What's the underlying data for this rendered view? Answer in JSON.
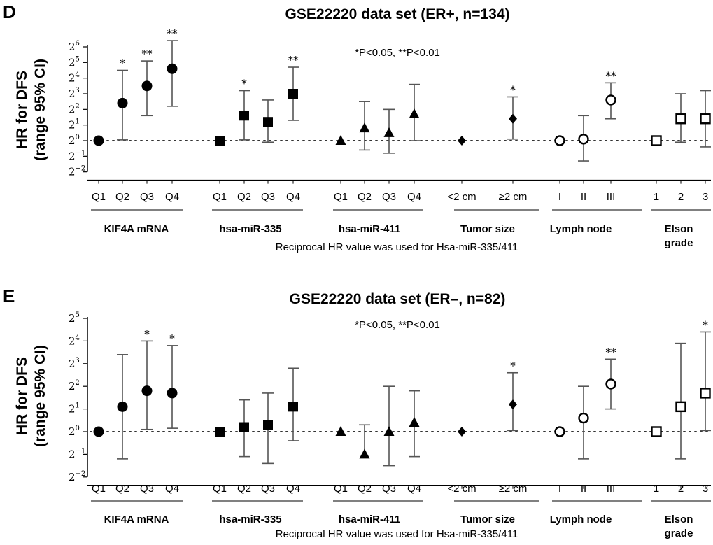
{
  "chart_data": [
    {
      "panel": "D",
      "type": "scatter",
      "title": "GSE22220 data set (ER+, n=134)",
      "ylabel_line1": "HR for DFS",
      "ylabel_line2": "(range 95% CI)",
      "yscale": "log2",
      "ylim": [
        -2,
        6
      ],
      "yticks": [
        -2,
        -1,
        0,
        1,
        2,
        3,
        4,
        5,
        6
      ],
      "significance_note": "*P<0.05, **P<0.01",
      "footnote": "Reciprocal HR value was used for Hsa-miR-335/411",
      "groups": [
        {
          "name": "KIF4A mRNA",
          "marker": "filled-circle",
          "points": [
            {
              "label": "Q1",
              "y": 0,
              "lo": null,
              "hi": null,
              "sig": ""
            },
            {
              "label": "Q2",
              "y": 2.4,
              "lo": 0.05,
              "hi": 4.5,
              "sig": "*"
            },
            {
              "label": "Q3",
              "y": 3.5,
              "lo": 1.6,
              "hi": 5.1,
              "sig": "**"
            },
            {
              "label": "Q4",
              "y": 4.6,
              "lo": 2.2,
              "hi": 6.4,
              "sig": "**"
            }
          ]
        },
        {
          "name": "hsa-miR-335",
          "marker": "filled-square",
          "points": [
            {
              "label": "Q1",
              "y": 0,
              "lo": null,
              "hi": null,
              "sig": ""
            },
            {
              "label": "Q2",
              "y": 1.6,
              "lo": 0.05,
              "hi": 3.2,
              "sig": "*"
            },
            {
              "label": "Q3",
              "y": 1.2,
              "lo": -0.1,
              "hi": 2.6,
              "sig": ""
            },
            {
              "label": "Q4",
              "y": 3.0,
              "lo": 1.3,
              "hi": 4.7,
              "sig": "**"
            }
          ]
        },
        {
          "name": "hsa-miR-411",
          "marker": "filled-triangle",
          "points": [
            {
              "label": "Q1",
              "y": 0,
              "lo": null,
              "hi": null,
              "sig": ""
            },
            {
              "label": "Q2",
              "y": 0.8,
              "lo": -0.6,
              "hi": 2.5,
              "sig": ""
            },
            {
              "label": "Q3",
              "y": 0.5,
              "lo": -0.8,
              "hi": 2.0,
              "sig": ""
            },
            {
              "label": "Q4",
              "y": 1.7,
              "lo": 0.0,
              "hi": 3.6,
              "sig": ""
            }
          ]
        },
        {
          "name": "Tumor size",
          "marker": "filled-diamond",
          "points": [
            {
              "label": "<2 cm",
              "y": 0,
              "lo": null,
              "hi": null,
              "sig": ""
            },
            {
              "label": "≥2 cm",
              "y": 1.4,
              "lo": 0.1,
              "hi": 2.8,
              "sig": "*"
            }
          ]
        },
        {
          "name": "Lymph node",
          "marker": "open-circle",
          "points": [
            {
              "label": "I",
              "y": 0,
              "lo": null,
              "hi": null,
              "sig": ""
            },
            {
              "label": "II",
              "y": 0.1,
              "lo": -1.3,
              "hi": 1.6,
              "sig": ""
            },
            {
              "label": "III",
              "y": 2.6,
              "lo": 1.4,
              "hi": 3.7,
              "sig": "**"
            }
          ]
        },
        {
          "name": "Elson grade",
          "marker": "open-square",
          "points": [
            {
              "label": "1",
              "y": 0,
              "lo": null,
              "hi": null,
              "sig": ""
            },
            {
              "label": "2",
              "y": 1.4,
              "lo": -0.1,
              "hi": 3.0,
              "sig": ""
            },
            {
              "label": "3",
              "y": 1.4,
              "lo": -0.4,
              "hi": 3.2,
              "sig": ""
            }
          ]
        }
      ]
    },
    {
      "panel": "E",
      "type": "scatter",
      "title": "GSE22220 data set (ER–, n=82)",
      "ylabel_line1": "HR for DFS",
      "ylabel_line2": "(range 95% CI)",
      "yscale": "log2",
      "ylim": [
        -2,
        5
      ],
      "yticks": [
        -2,
        -1,
        0,
        1,
        2,
        3,
        4,
        5
      ],
      "significance_note": "*P<0.05, **P<0.01",
      "footnote": "Reciprocal HR value was used for Hsa-miR-335/411",
      "groups": [
        {
          "name": "KIF4A mRNA",
          "marker": "filled-circle",
          "points": [
            {
              "label": "Q1",
              "y": 0,
              "lo": null,
              "hi": null,
              "sig": ""
            },
            {
              "label": "Q2",
              "y": 1.1,
              "lo": -1.2,
              "hi": 3.4,
              "sig": ""
            },
            {
              "label": "Q3",
              "y": 1.8,
              "lo": 0.1,
              "hi": 4.0,
              "sig": "*"
            },
            {
              "label": "Q4",
              "y": 1.7,
              "lo": 0.15,
              "hi": 3.8,
              "sig": "*"
            }
          ]
        },
        {
          "name": "hsa-miR-335",
          "marker": "filled-square",
          "points": [
            {
              "label": "Q1",
              "y": 0,
              "lo": null,
              "hi": null,
              "sig": ""
            },
            {
              "label": "Q2",
              "y": 0.2,
              "lo": -1.1,
              "hi": 1.4,
              "sig": ""
            },
            {
              "label": "Q3",
              "y": 0.3,
              "lo": -1.4,
              "hi": 1.7,
              "sig": ""
            },
            {
              "label": "Q4",
              "y": 1.1,
              "lo": -0.4,
              "hi": 2.8,
              "sig": ""
            }
          ]
        },
        {
          "name": "hsa-miR-411",
          "marker": "filled-triangle",
          "points": [
            {
              "label": "Q1",
              "y": 0,
              "lo": null,
              "hi": null,
              "sig": ""
            },
            {
              "label": "Q2",
              "y": -1.0,
              "lo": null,
              "hi": 0.3,
              "sig": ""
            },
            {
              "label": "Q3",
              "y": 0.0,
              "lo": -1.5,
              "hi": 2.0,
              "sig": ""
            },
            {
              "label": "Q4",
              "y": 0.4,
              "lo": -1.1,
              "hi": 1.8,
              "sig": ""
            }
          ]
        },
        {
          "name": "Tumor size",
          "marker": "filled-diamond",
          "points": [
            {
              "label": "<2 cm",
              "y": 0,
              "lo": null,
              "hi": null,
              "sig": ""
            },
            {
              "label": "≥2 cm",
              "y": 1.2,
              "lo": 0.05,
              "hi": 2.6,
              "sig": "*"
            }
          ]
        },
        {
          "name": "Lymph node",
          "marker": "open-circle",
          "points": [
            {
              "label": "I",
              "y": 0,
              "lo": null,
              "hi": null,
              "sig": ""
            },
            {
              "label": "II",
              "y": 0.6,
              "lo": -1.2,
              "hi": 2.0,
              "sig": ""
            },
            {
              "label": "III",
              "y": 2.1,
              "lo": 1.0,
              "hi": 3.2,
              "sig": "**"
            }
          ]
        },
        {
          "name": "Elson grade",
          "marker": "open-square",
          "points": [
            {
              "label": "1",
              "y": 0,
              "lo": null,
              "hi": null,
              "sig": ""
            },
            {
              "label": "2",
              "y": 1.1,
              "lo": -1.2,
              "hi": 3.9,
              "sig": ""
            },
            {
              "label": "3",
              "y": 1.7,
              "lo": 0.05,
              "hi": 4.4,
              "sig": "*"
            }
          ]
        }
      ]
    }
  ],
  "elson_line1": "Elson",
  "elson_line2": "grade"
}
